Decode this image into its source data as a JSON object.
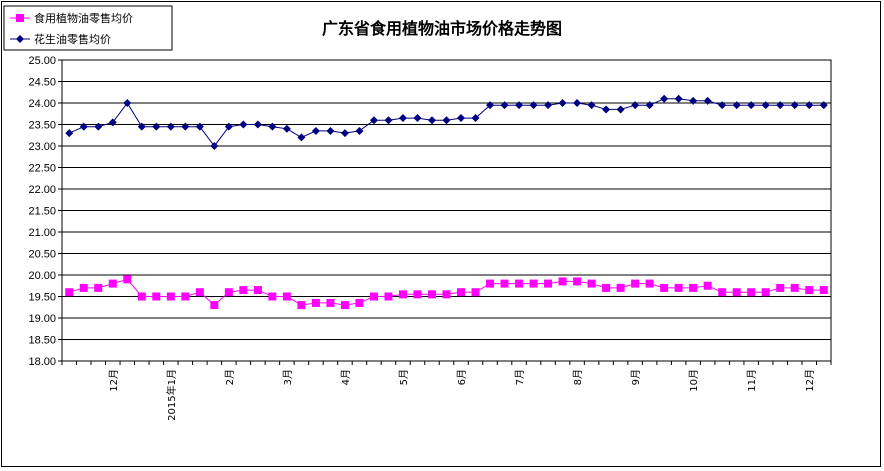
{
  "chart_data": {
    "type": "line",
    "title": "广东省食用植物油市场价格走势图",
    "xlabel": "",
    "ylabel": "",
    "ylim": [
      18.0,
      25.0
    ],
    "y_ticks": [
      "18.00",
      "18.50",
      "19.00",
      "19.50",
      "20.00",
      "20.50",
      "21.00",
      "21.50",
      "22.00",
      "22.50",
      "23.00",
      "23.50",
      "24.00",
      "24.50",
      "25.00"
    ],
    "grid": true,
    "legend_position": "top-left",
    "x_tick_labels": [
      {
        "label": "12月",
        "index": 3
      },
      {
        "label": "2015年1月",
        "index": 7
      },
      {
        "label": "2月",
        "index": 11
      },
      {
        "label": "3月",
        "index": 15
      },
      {
        "label": "4月",
        "index": 19
      },
      {
        "label": "5月",
        "index": 23
      },
      {
        "label": "6月",
        "index": 27
      },
      {
        "label": "7月",
        "index": 31
      },
      {
        "label": "8月",
        "index": 35
      },
      {
        "label": "9月",
        "index": 39
      },
      {
        "label": "10月",
        "index": 43
      },
      {
        "label": "11月",
        "index": 47
      },
      {
        "label": "12月",
        "index": 51
      }
    ],
    "series": [
      {
        "name": "食用植物油零售均价",
        "color": "#ff00ff",
        "marker": "square",
        "values": [
          19.6,
          19.7,
          19.7,
          19.8,
          19.9,
          19.5,
          19.5,
          19.5,
          19.5,
          19.6,
          19.3,
          19.6,
          19.65,
          19.65,
          19.5,
          19.5,
          19.3,
          19.35,
          19.35,
          19.3,
          19.35,
          19.5,
          19.5,
          19.55,
          19.55,
          19.55,
          19.55,
          19.6,
          19.6,
          19.8,
          19.8,
          19.8,
          19.8,
          19.8,
          19.85,
          19.85,
          19.8,
          19.7,
          19.7,
          19.8,
          19.8,
          19.7,
          19.7,
          19.7,
          19.75,
          19.6,
          19.6,
          19.6,
          19.6,
          19.7,
          19.7,
          19.65,
          19.65
        ]
      },
      {
        "name": "花生油零售均价",
        "color": "#000080",
        "marker": "diamond",
        "values": [
          23.3,
          23.45,
          23.45,
          23.55,
          24.0,
          23.45,
          23.45,
          23.45,
          23.45,
          23.45,
          23.0,
          23.45,
          23.5,
          23.5,
          23.45,
          23.4,
          23.2,
          23.35,
          23.35,
          23.3,
          23.35,
          23.6,
          23.6,
          23.65,
          23.65,
          23.6,
          23.6,
          23.65,
          23.65,
          23.95,
          23.95,
          23.95,
          23.95,
          23.95,
          24.0,
          24.0,
          23.95,
          23.85,
          23.85,
          23.95,
          23.95,
          24.1,
          24.1,
          24.05,
          24.05,
          23.95,
          23.95,
          23.95,
          23.95,
          23.95,
          23.95,
          23.95,
          23.95
        ]
      }
    ]
  }
}
